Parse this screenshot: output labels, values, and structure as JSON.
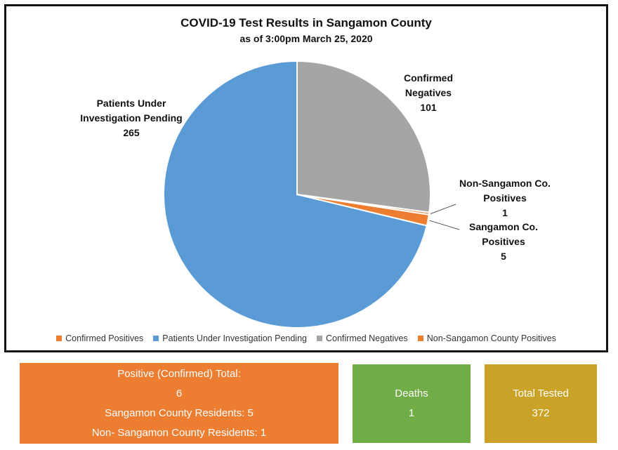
{
  "chart_data": {
    "type": "pie",
    "title": "COVID-19 Test Results in Sangamon County",
    "subtitle": "as of 3:00pm March 25, 2020",
    "slices": [
      {
        "name": "Confirmed Positives",
        "value": 5,
        "color": "#ED7D31"
      },
      {
        "name": "Patients Under Investigation Pending",
        "value": 265,
        "color": "#5B9BD5"
      },
      {
        "name": "Confirmed Negatives",
        "value": 101,
        "color": "#A5A5A5"
      },
      {
        "name": "Non-Sangamon County Positives",
        "value": 1,
        "color": "#ED7D31"
      }
    ],
    "data_labels": {
      "pending": {
        "line1": "Patients Under",
        "line2": "Investigation Pending",
        "value": "265"
      },
      "negatives": {
        "line1": "Confirmed",
        "line2": "Negatives",
        "value": "101"
      },
      "non_sangamon": {
        "line1": "Non-Sangamon Co.",
        "line2": "Positives",
        "value": "1"
      },
      "sangamon": {
        "line1": "Sangamon Co.",
        "line2": "Positives",
        "value": "5"
      }
    },
    "legend": [
      "Confirmed Positives",
      "Patients Under Investigation Pending",
      "Confirmed Negatives",
      "Non-Sangamon County Positives"
    ],
    "legend_position": "bottom"
  },
  "summary": {
    "positive": {
      "label": "Positive (Confirmed) Total:",
      "value": "6",
      "residents": "Sangamon County Residents: 5",
      "non_residents": "Non- Sangamon County Residents: 1",
      "color": "#ED7D31"
    },
    "deaths": {
      "label": "Deaths",
      "value": "1",
      "color": "#70AD47"
    },
    "total": {
      "label": "Total Tested",
      "value": "372",
      "color": "#C9A227"
    }
  }
}
